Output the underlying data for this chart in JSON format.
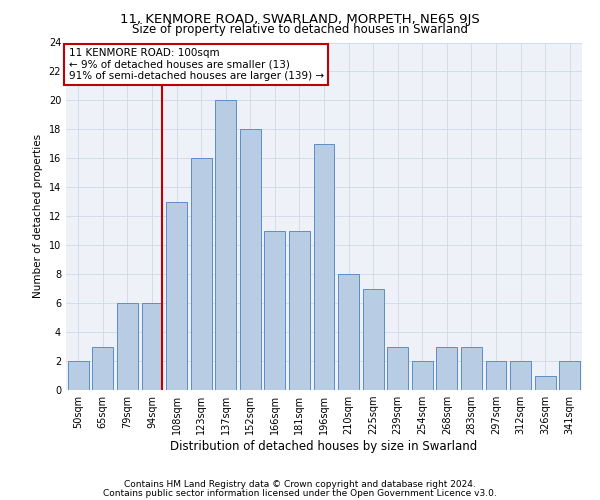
{
  "title": "11, KENMORE ROAD, SWARLAND, MORPETH, NE65 9JS",
  "subtitle": "Size of property relative to detached houses in Swarland",
  "xlabel": "Distribution of detached houses by size in Swarland",
  "ylabel": "Number of detached properties",
  "categories": [
    "50sqm",
    "65sqm",
    "79sqm",
    "94sqm",
    "108sqm",
    "123sqm",
    "137sqm",
    "152sqm",
    "166sqm",
    "181sqm",
    "196sqm",
    "210sqm",
    "225sqm",
    "239sqm",
    "254sqm",
    "268sqm",
    "283sqm",
    "297sqm",
    "312sqm",
    "326sqm",
    "341sqm"
  ],
  "values": [
    2,
    3,
    6,
    6,
    13,
    16,
    20,
    18,
    11,
    11,
    17,
    8,
    7,
    3,
    2,
    3,
    3,
    2,
    2,
    1,
    2
  ],
  "bar_color": "#b8cce4",
  "bar_edge_color": "#5b8dc8",
  "highlight_index": 3,
  "highlight_color": "#c00000",
  "ylim": [
    0,
    24
  ],
  "yticks": [
    0,
    2,
    4,
    6,
    8,
    10,
    12,
    14,
    16,
    18,
    20,
    22,
    24
  ],
  "annotation_box_text": "11 KENMORE ROAD: 100sqm\n← 9% of detached houses are smaller (13)\n91% of semi-detached houses are larger (139) →",
  "annotation_box_color": "#ffffff",
  "annotation_box_edge_color": "#c00000",
  "footer_line1": "Contains HM Land Registry data © Crown copyright and database right 2024.",
  "footer_line2": "Contains public sector information licensed under the Open Government Licence v3.0.",
  "bg_color": "#ffffff",
  "grid_color": "#d0d8e8",
  "title_fontsize": 9.5,
  "subtitle_fontsize": 8.5,
  "xlabel_fontsize": 8.5,
  "ylabel_fontsize": 7.5,
  "tick_fontsize": 7,
  "footer_fontsize": 6.5,
  "annotation_fontsize": 7.5
}
